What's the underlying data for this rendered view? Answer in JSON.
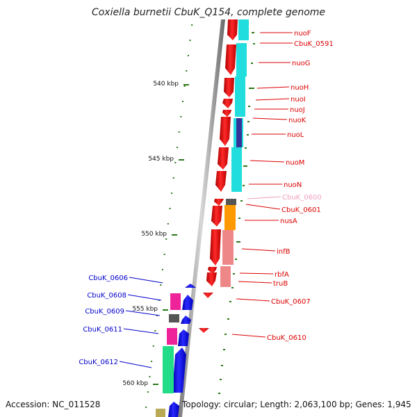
{
  "title": "Coxiella burnetii CbuK_Q154, complete genome",
  "accession": "Accession: NC_011528",
  "summary": "Topology: circular; Length: 2,063,100 bp; Genes: 1,945",
  "colors": {
    "forward_label": "#dd0000",
    "reverse_label": "#0000cc",
    "pseudo_label": "#f0a0c0",
    "backbone": "#888888",
    "tick": "#2a7a1a",
    "gene_red": "#ee0000",
    "gene_blue": "#0000ee",
    "cog_cyan": "#22dddd"
  },
  "ruler": [
    {
      "label": "540 kbp"
    },
    {
      "label": "545 kbp"
    },
    {
      "label": "550 kbp"
    },
    {
      "label": "555 kbp"
    },
    {
      "label": "560 kbp"
    }
  ],
  "forward_genes": [
    {
      "label": "nuoF"
    },
    {
      "label": "CbuK_0591"
    },
    {
      "label": "nuoG"
    },
    {
      "label": "nuoH"
    },
    {
      "label": "nuoI"
    },
    {
      "label": "nuoJ"
    },
    {
      "label": "nuoK"
    },
    {
      "label": "nuoL"
    },
    {
      "label": "nuoM"
    },
    {
      "label": "nuoN"
    },
    {
      "label": "CbuK_0600",
      "pseudo": true
    },
    {
      "label": "CbuK_0601"
    },
    {
      "label": "nusA"
    },
    {
      "label": "infB"
    },
    {
      "label": "rbfA"
    },
    {
      "label": "truB"
    },
    {
      "label": "CbuK_0607"
    },
    {
      "label": "CbuK_0610"
    }
  ],
  "reverse_genes": [
    {
      "label": "CbuK_0606"
    },
    {
      "label": "CbuK_0608"
    },
    {
      "label": "CbuK_0609"
    },
    {
      "label": "CbuK_0611"
    },
    {
      "label": "CbuK_0612"
    }
  ]
}
